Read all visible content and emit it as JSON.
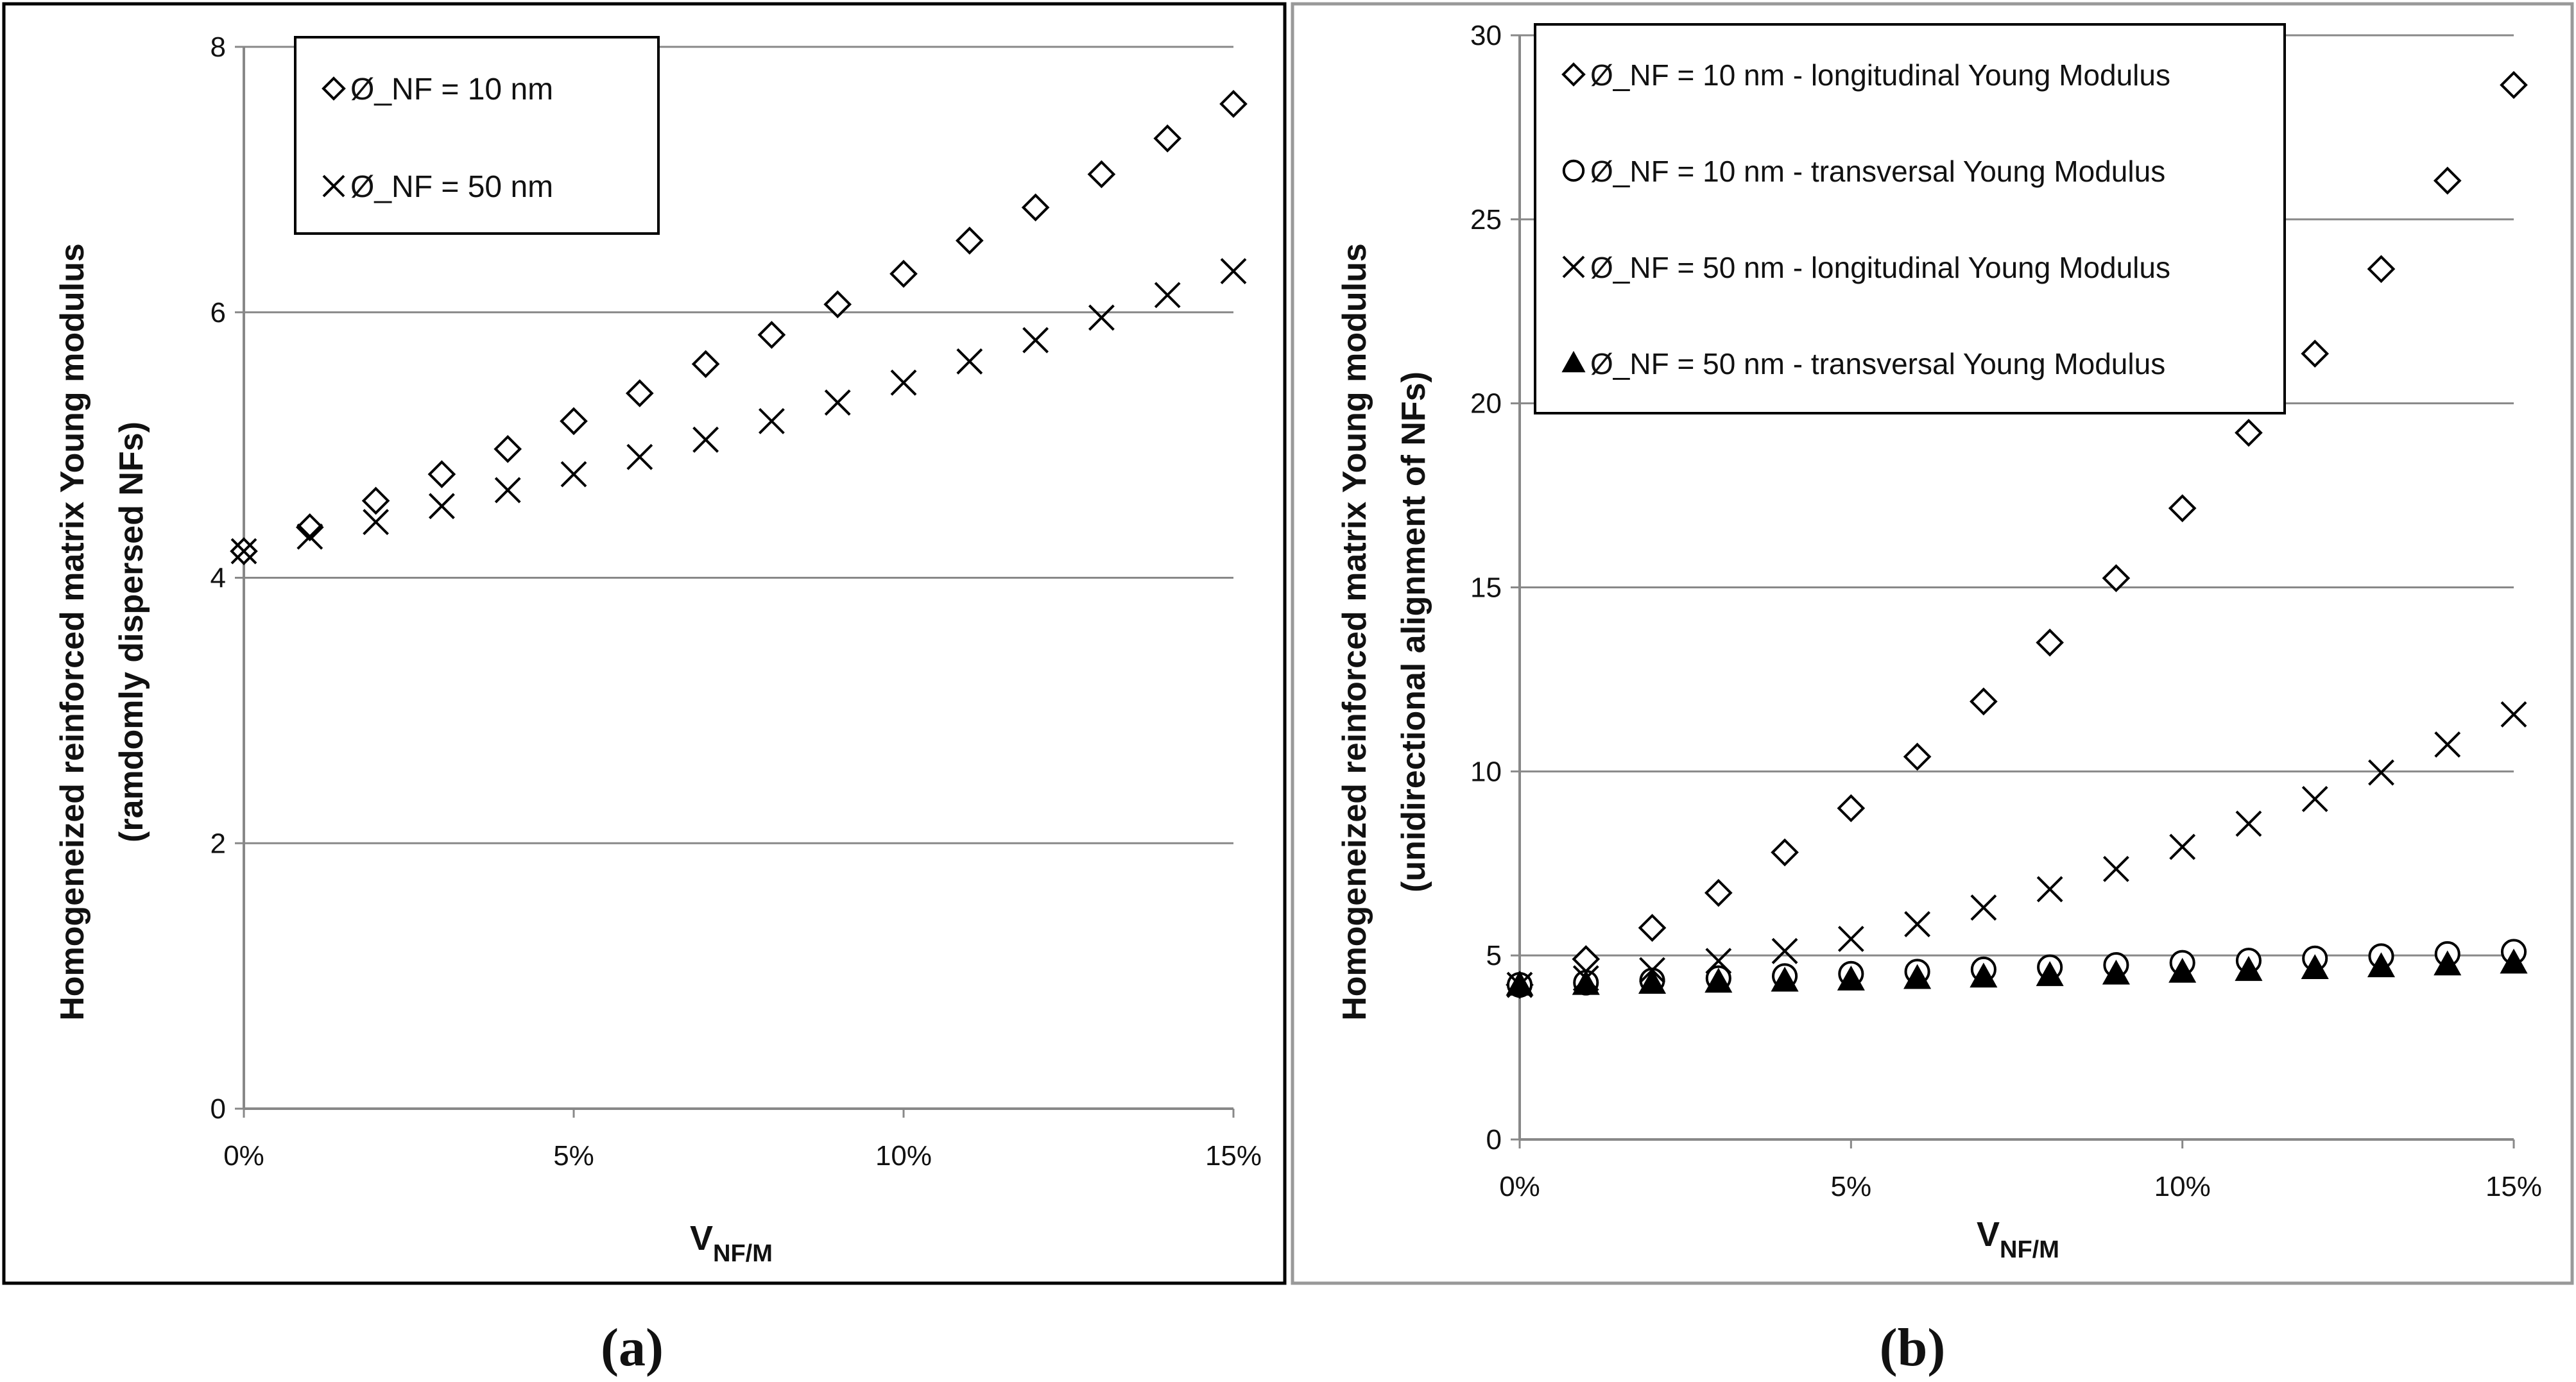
{
  "panels": {
    "a_label": "(a)",
    "b_label": "(b)"
  },
  "chart_data": [
    {
      "type": "scatter",
      "id": "a",
      "title": "",
      "xlabel_main": "V",
      "xlabel_sub": "NF/M",
      "ylabel_line1": "Homogeneized reinforced matrix Young modulus",
      "ylabel_line2": "(ramdomly dispersed NFs)",
      "x": [
        0,
        1,
        2,
        3,
        4,
        5,
        6,
        7,
        8,
        9,
        10,
        11,
        12,
        13,
        14,
        15
      ],
      "xlim": [
        0,
        15
      ],
      "xticks": [
        0,
        5,
        10,
        15
      ],
      "xtick_labels": [
        "0%",
        "5%",
        "10%",
        "15%"
      ],
      "ylim": [
        0,
        8
      ],
      "yticks": [
        0,
        2,
        4,
        6,
        8
      ],
      "ytick_labels": [
        "0",
        "2",
        "4",
        "6",
        "8"
      ],
      "grid": true,
      "legend_position": "top-left",
      "series": [
        {
          "name": "Ø_NF = 10 nm",
          "marker": "diamond",
          "values": [
            4.2,
            4.38,
            4.58,
            4.78,
            4.97,
            5.18,
            5.39,
            5.61,
            5.83,
            6.06,
            6.29,
            6.54,
            6.79,
            7.04,
            7.31,
            7.57
          ]
        },
        {
          "name": "Ø_NF = 50 nm",
          "marker": "x",
          "values": [
            4.2,
            4.31,
            4.42,
            4.54,
            4.66,
            4.78,
            4.91,
            5.04,
            5.18,
            5.32,
            5.47,
            5.63,
            5.79,
            5.96,
            6.13,
            6.31
          ]
        }
      ]
    },
    {
      "type": "scatter",
      "id": "b",
      "title": "",
      "xlabel_main": "V",
      "xlabel_sub": "NF/M",
      "ylabel_line1": "Homogeneized reinforced matrix Young modulus",
      "ylabel_line2": "(unidirectional alignment of NFs)",
      "x": [
        0,
        1,
        2,
        3,
        4,
        5,
        6,
        7,
        8,
        9,
        10,
        11,
        12,
        13,
        14,
        15
      ],
      "xlim": [
        0,
        15
      ],
      "xticks": [
        0,
        5,
        10,
        15
      ],
      "xtick_labels": [
        "0%",
        "5%",
        "10%",
        "15%"
      ],
      "ylim": [
        0,
        30
      ],
      "yticks": [
        0,
        5,
        10,
        15,
        20,
        25,
        30
      ],
      "ytick_labels": [
        "0",
        "5",
        "10",
        "15",
        "20",
        "25",
        "30"
      ],
      "grid": true,
      "legend_position": "top-left",
      "series": [
        {
          "name": "Ø_NF = 10 nm - longitudinal Young Modulus",
          "marker": "diamond",
          "values": [
            4.2,
            4.9,
            5.75,
            6.7,
            7.8,
            9.0,
            10.4,
            11.9,
            13.5,
            15.25,
            17.15,
            19.2,
            21.35,
            23.65,
            26.05,
            28.65
          ]
        },
        {
          "name": "Ø_NF = 10 nm - transversal Young Modulus",
          "marker": "circle",
          "values": [
            4.2,
            4.26,
            4.32,
            4.38,
            4.44,
            4.5,
            4.56,
            4.62,
            4.68,
            4.74,
            4.8,
            4.86,
            4.92,
            4.98,
            5.04,
            5.1
          ]
        },
        {
          "name": "Ø_NF = 50 nm - longitudinal Young Modulus",
          "marker": "x",
          "values": [
            4.2,
            4.38,
            4.6,
            4.85,
            5.12,
            5.45,
            5.85,
            6.3,
            6.8,
            7.35,
            7.95,
            8.58,
            9.25,
            9.97,
            10.73,
            11.55
          ]
        },
        {
          "name": "Ø_NF = 50 nm - transversal Young Modulus",
          "marker": "triangle",
          "values": [
            4.2,
            4.22,
            4.25,
            4.28,
            4.31,
            4.34,
            4.38,
            4.42,
            4.46,
            4.5,
            4.55,
            4.6,
            4.65,
            4.7,
            4.75,
            4.8
          ]
        }
      ]
    }
  ]
}
